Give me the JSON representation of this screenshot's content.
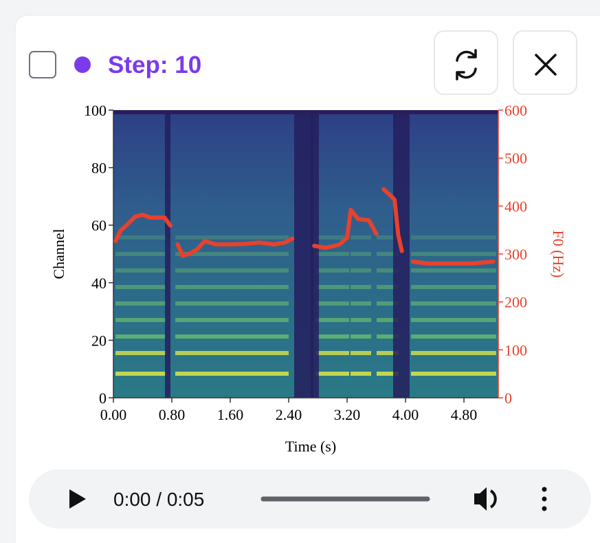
{
  "header": {
    "step_label": "Step: 10"
  },
  "chart_data": {
    "type": "line",
    "x_label": "Time (s)",
    "y_label": "Channel",
    "y2_label": "F0 (Hz)",
    "x": [
      0.03,
      0.1,
      0.2,
      0.3,
      0.4,
      0.5,
      0.6,
      0.7,
      0.78,
      null,
      0.88,
      0.95,
      1.05,
      1.15,
      1.25,
      1.4,
      1.6,
      1.8,
      2.0,
      2.2,
      2.35,
      2.45,
      null,
      2.75,
      2.9,
      3.0,
      3.1,
      3.2,
      3.25,
      3.35,
      3.5,
      3.6,
      null,
      3.7,
      3.8,
      3.85,
      3.9,
      3.95,
      null,
      4.1,
      4.3,
      4.6,
      4.9,
      5.2
    ],
    "series": [
      {
        "color": "#e8412c",
        "axis": "y2",
        "values": [
          327,
          349,
          363,
          378,
          382,
          376,
          376,
          376,
          359,
          null,
          320,
          296,
          301,
          310,
          327,
          320,
          320,
          321,
          324,
          320,
          324,
          332,
          null,
          317,
          313,
          316,
          320,
          334,
          392,
          373,
          370,
          342,
          null,
          435,
          421,
          413,
          340,
          306,
          null,
          284,
          280,
          280,
          280,
          284
        ]
      }
    ],
    "xlim": [
      0,
      5.27
    ],
    "xticks": [
      {
        "value": 0,
        "label": "0.00"
      },
      {
        "value": 0.8,
        "label": "0.80"
      },
      {
        "value": 1.6,
        "label": "1.60"
      },
      {
        "value": 2.4,
        "label": "2.40"
      },
      {
        "value": 3.2,
        "label": "3.20"
      },
      {
        "value": 4.0,
        "label": "4.00"
      },
      {
        "value": 4.8,
        "label": "4.80"
      }
    ],
    "ylim": [
      0,
      100
    ],
    "yticks": [
      0,
      20,
      40,
      60,
      80,
      100
    ],
    "y2lim": [
      0,
      600
    ],
    "y2ticks": [
      0,
      100,
      200,
      300,
      400,
      500,
      600
    ],
    "y2_color": "#e8412c"
  },
  "audio": {
    "time": "0:00 / 0:05"
  }
}
